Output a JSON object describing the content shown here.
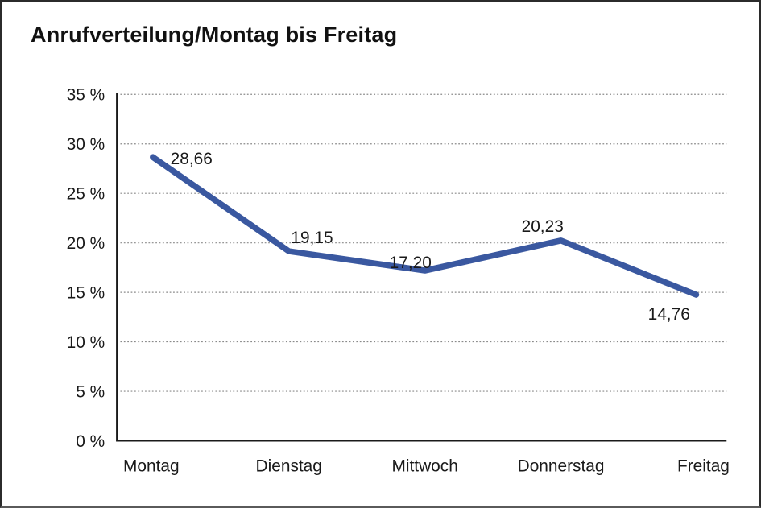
{
  "chart_data": {
    "type": "line",
    "title": "Anrufverteilung/Montag bis Freitag",
    "categories": [
      "Montag",
      "Dienstag",
      "Mittwoch",
      "Donnerstag",
      "Freitag"
    ],
    "values": [
      28.66,
      19.15,
      17.2,
      20.23,
      14.76
    ],
    "value_labels": [
      "28,66",
      "19,15",
      "17,20",
      "20,23",
      "14,76"
    ],
    "series_name": "Anrufverteilung",
    "xlabel": "",
    "ylabel": "",
    "ylim": [
      0,
      35
    ],
    "y_tick_values": [
      35,
      30,
      25,
      20,
      15,
      10,
      5,
      0
    ],
    "y_tick_labels": [
      "35 %",
      "30 %",
      "25 %",
      "20 %",
      "15 %",
      "10 %",
      "5 %",
      "0 %"
    ],
    "grid": "horizontal-dotted",
    "legend_position": "none",
    "colors": {
      "line": "#3A58A0",
      "grid": "#8a8a8a",
      "axis": "#1a1a1a",
      "text": "#1a1a1a",
      "background": "#ffffff"
    }
  }
}
